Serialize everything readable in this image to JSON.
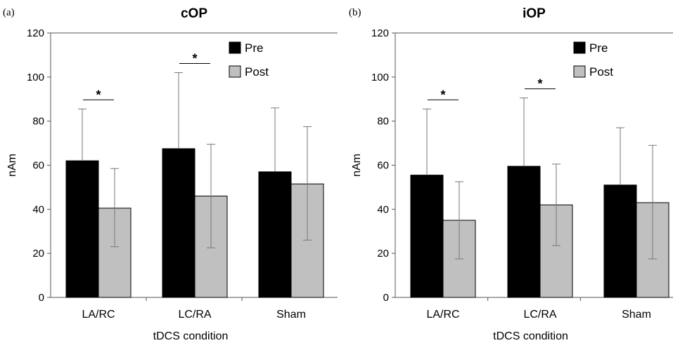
{
  "chart_data": [
    {
      "type": "bar",
      "panel_label": "(a)",
      "title": "cOP",
      "xlabel": "tDCS condition",
      "ylabel": "nAm",
      "ylim": [
        0,
        120
      ],
      "yticks": [
        0,
        20,
        40,
        60,
        80,
        100,
        120
      ],
      "categories": [
        "LA/RC",
        "LC/RA",
        "Sham"
      ],
      "series": [
        {
          "name": "Pre",
          "color": "#000000",
          "values": [
            62,
            67.5,
            57
          ],
          "error_upper": [
            85.5,
            102,
            86
          ]
        },
        {
          "name": "Post",
          "color": "#c0c0c0",
          "values": [
            40.5,
            46,
            51.5
          ],
          "error_upper": [
            58.5,
            69.5,
            77.5
          ],
          "error_lower": [
            23,
            22.5,
            26
          ]
        }
      ],
      "significance": [
        {
          "category": "LA/RC",
          "label": "*"
        },
        {
          "category": "LC/RA",
          "label": "*"
        }
      ],
      "legend_position": "top-right",
      "grid": false
    },
    {
      "type": "bar",
      "panel_label": "(b)",
      "title": "iOP",
      "xlabel": "tDCS condition",
      "ylabel": "nAm",
      "ylim": [
        0,
        120
      ],
      "yticks": [
        0,
        20,
        40,
        60,
        80,
        100,
        120
      ],
      "categories": [
        "LA/RC",
        "LC/RA",
        "Sham"
      ],
      "series": [
        {
          "name": "Pre",
          "color": "#000000",
          "values": [
            55.5,
            59.5,
            51
          ],
          "error_upper": [
            85.5,
            90.5,
            77
          ]
        },
        {
          "name": "Post",
          "color": "#c0c0c0",
          "values": [
            35,
            42,
            43
          ],
          "error_upper": [
            52.5,
            60.5,
            69
          ],
          "error_lower": [
            17.5,
            23.5,
            17.5
          ]
        }
      ],
      "significance": [
        {
          "category": "LA/RC",
          "label": "*"
        },
        {
          "category": "LC/RA",
          "label": "*"
        }
      ],
      "legend_position": "top-right",
      "grid": false
    }
  ]
}
